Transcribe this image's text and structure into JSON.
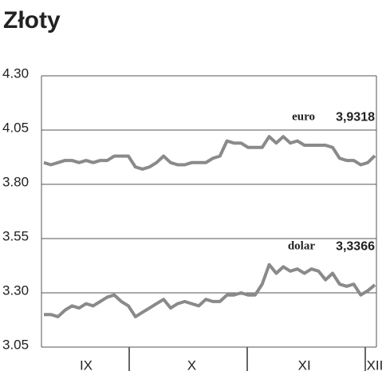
{
  "chart_data": {
    "type": "line",
    "title": "Złoty",
    "categories": [
      null,
      null,
      null,
      null,
      null,
      null,
      "IX",
      null,
      null,
      null,
      null,
      null,
      null,
      null,
      null,
      null,
      null,
      null,
      null,
      null,
      null,
      "X",
      null,
      null,
      null,
      null,
      null,
      null,
      null,
      null,
      null,
      null,
      null,
      null,
      null,
      null,
      null,
      "XI",
      null,
      null,
      null,
      null,
      null,
      null,
      null,
      null,
      null,
      "XII"
    ],
    "series": [
      {
        "name": "euro",
        "color": "#8a8a8a",
        "values": [
          3.9,
          3.89,
          3.9,
          3.91,
          3.91,
          3.9,
          3.91,
          3.9,
          3.91,
          3.91,
          3.93,
          3.93,
          3.93,
          3.88,
          3.87,
          3.88,
          3.9,
          3.93,
          3.9,
          3.89,
          3.89,
          3.9,
          3.9,
          3.9,
          3.92,
          3.93,
          4.0,
          3.99,
          3.99,
          3.97,
          3.97,
          3.97,
          4.02,
          3.99,
          4.02,
          3.99,
          4.0,
          3.98,
          3.98,
          3.98,
          3.98,
          3.97,
          3.92,
          3.91,
          3.91,
          3.89,
          3.9,
          3.9318
        ],
        "value_labels": [
          null,
          null,
          null,
          null,
          null,
          null,
          null,
          null,
          null,
          null,
          null,
          null,
          null,
          null,
          null,
          null,
          null,
          null,
          null,
          null,
          null,
          null,
          null,
          null,
          null,
          null,
          null,
          null,
          null,
          null,
          null,
          null,
          null,
          null,
          null,
          null,
          null,
          null,
          null,
          null,
          null,
          null,
          null,
          null,
          null,
          null,
          null,
          "3,9318"
        ]
      },
      {
        "name": "dolar",
        "color": "#8a8a8a",
        "values": [
          3.2,
          3.2,
          3.19,
          3.22,
          3.24,
          3.23,
          3.25,
          3.24,
          3.26,
          3.28,
          3.29,
          3.26,
          3.24,
          3.19,
          3.21,
          3.23,
          3.25,
          3.27,
          3.23,
          3.25,
          3.26,
          3.25,
          3.24,
          3.27,
          3.26,
          3.26,
          3.29,
          3.29,
          3.3,
          3.29,
          3.29,
          3.34,
          3.43,
          3.39,
          3.42,
          3.4,
          3.41,
          3.39,
          3.41,
          3.4,
          3.36,
          3.39,
          3.34,
          3.33,
          3.34,
          3.29,
          3.31,
          3.3366
        ],
        "value_labels": [
          null,
          null,
          null,
          null,
          null,
          null,
          null,
          null,
          null,
          null,
          null,
          null,
          null,
          null,
          null,
          null,
          null,
          null,
          null,
          null,
          null,
          null,
          null,
          null,
          null,
          null,
          null,
          null,
          null,
          null,
          null,
          null,
          null,
          null,
          null,
          null,
          null,
          null,
          null,
          null,
          null,
          null,
          null,
          null,
          null,
          null,
          null,
          "3,3366"
        ]
      }
    ],
    "ylim": [
      3.05,
      4.3
    ],
    "yticks": [
      {
        "value": 4.3,
        "label": "4.30"
      },
      4.05,
      {
        "value": 3.8,
        "label": "3.80"
      },
      3.55,
      {
        "value": 3.3,
        "label": "3.30"
      },
      3.05
    ],
    "grid": true
  }
}
